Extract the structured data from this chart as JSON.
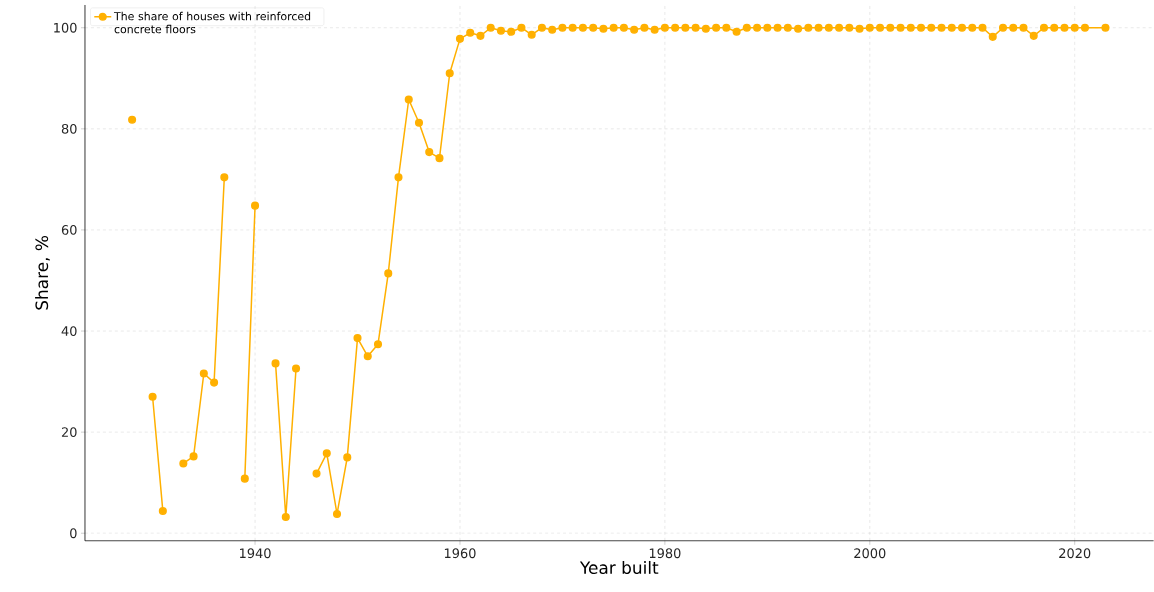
{
  "chart_data": {
    "type": "line",
    "xlabel": "Year built",
    "ylabel": "Share, %",
    "xlim": [
      1923.4,
      2027.7
    ],
    "ylim": [
      -1.5,
      104.5
    ],
    "xticks": [
      1940,
      1960,
      1980,
      2000,
      2020
    ],
    "yticks": [
      0,
      20,
      40,
      60,
      80,
      100
    ],
    "grid": true,
    "legend": "top left",
    "marker": "circle",
    "line_style": "solid",
    "series": [
      {
        "name": "The share of houses with reinforced concrete floors",
        "color": "#ffb000",
        "x": [
          1928,
          1929,
          1930,
          1931,
          1932,
          1933,
          1934,
          1935,
          1936,
          1937,
          1938,
          1939,
          1940,
          1941,
          1942,
          1943,
          1944,
          1945,
          1946,
          1947,
          1948,
          1949,
          1950,
          1951,
          1952,
          1953,
          1954,
          1955,
          1956,
          1957,
          1958,
          1959,
          1960,
          1961,
          1962,
          1963,
          1964,
          1965,
          1966,
          1967,
          1968,
          1969,
          1970,
          1971,
          1972,
          1973,
          1974,
          1975,
          1976,
          1977,
          1978,
          1979,
          1980,
          1981,
          1982,
          1983,
          1984,
          1985,
          1986,
          1987,
          1988,
          1989,
          1990,
          1991,
          1992,
          1993,
          1994,
          1995,
          1996,
          1997,
          1998,
          1999,
          2000,
          2001,
          2002,
          2003,
          2004,
          2005,
          2006,
          2007,
          2008,
          2009,
          2010,
          2011,
          2012,
          2013,
          2014,
          2015,
          2016,
          2017,
          2018,
          2019,
          2020,
          2021,
          2023
        ],
        "values": [
          81.8,
          null,
          27.0,
          4.4,
          null,
          13.8,
          15.2,
          31.6,
          29.8,
          70.4,
          null,
          10.8,
          64.8,
          null,
          33.6,
          3.2,
          32.6,
          null,
          11.8,
          15.8,
          3.8,
          15.0,
          38.6,
          35.0,
          37.4,
          51.4,
          70.4,
          85.8,
          81.2,
          75.4,
          74.2,
          91.0,
          97.8,
          99.0,
          98.4,
          100,
          99.4,
          99.2,
          100,
          98.6,
          100,
          99.6,
          100,
          100,
          100,
          100,
          99.8,
          100,
          100,
          99.6,
          100,
          99.6,
          100,
          100,
          100,
          100,
          99.8,
          100,
          100,
          99.2,
          100,
          100,
          100,
          100,
          100,
          99.8,
          100,
          100,
          100,
          100,
          100,
          99.8,
          100,
          100,
          100,
          100,
          100,
          100,
          100,
          100,
          100,
          100,
          100,
          100,
          98.2,
          100,
          100,
          100,
          98.4,
          100,
          100,
          100,
          100,
          100,
          100
        ]
      }
    ]
  }
}
